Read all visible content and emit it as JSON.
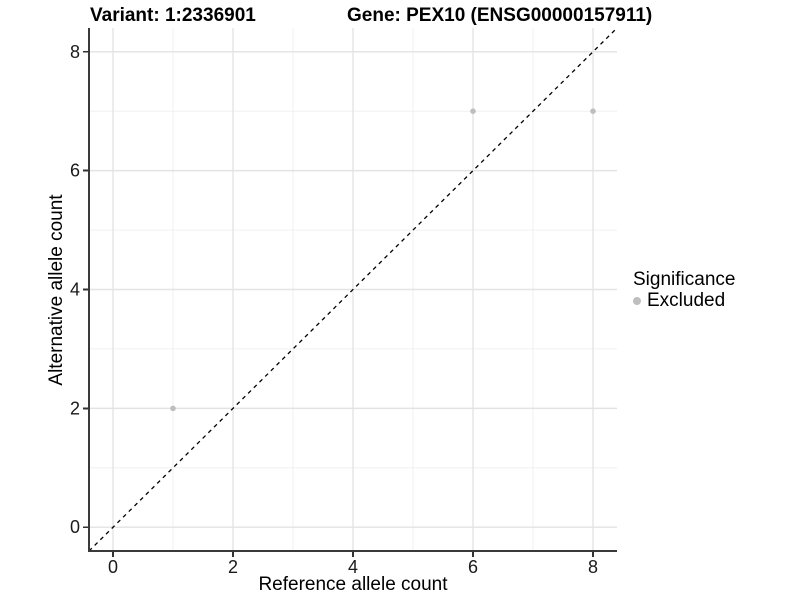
{
  "chart_data": {
    "type": "scatter",
    "title_left": "Variant: 1:2336901",
    "title_right": "Gene: PEX10 (ENSG00000157911)",
    "xlabel": "Reference allele count",
    "ylabel": "Alternative allele count",
    "xlim": [
      -0.4,
      8.4
    ],
    "ylim": [
      -0.4,
      8.4
    ],
    "xticks": [
      0,
      2,
      4,
      6,
      8
    ],
    "yticks": [
      0,
      2,
      4,
      6,
      8
    ],
    "xminor": [
      1,
      3,
      5,
      7
    ],
    "yminor": [
      1,
      3,
      5,
      7
    ],
    "grid": "on",
    "series": [
      {
        "name": "Excluded",
        "color": "#bebebe",
        "points": [
          [
            1,
            2
          ],
          [
            6,
            7
          ],
          [
            8,
            7
          ]
        ]
      }
    ],
    "reference_line": {
      "type": "identity",
      "style": "dashed",
      "color": "#000000",
      "from": [
        -0.4,
        -0.4
      ],
      "to": [
        8.4,
        8.4
      ]
    },
    "legend": {
      "title": "Significance",
      "position": "right",
      "items": [
        {
          "label": "Excluded",
          "color": "#bebebe"
        }
      ]
    },
    "style": {
      "major_grid_color": "#e3e3e3",
      "minor_grid_color": "#f0f0f0",
      "axis_line_color": "#3a3a3a",
      "tick_color": "#333333",
      "tick_label_color": "#1a1a1a",
      "point_radius": 2.8
    }
  }
}
